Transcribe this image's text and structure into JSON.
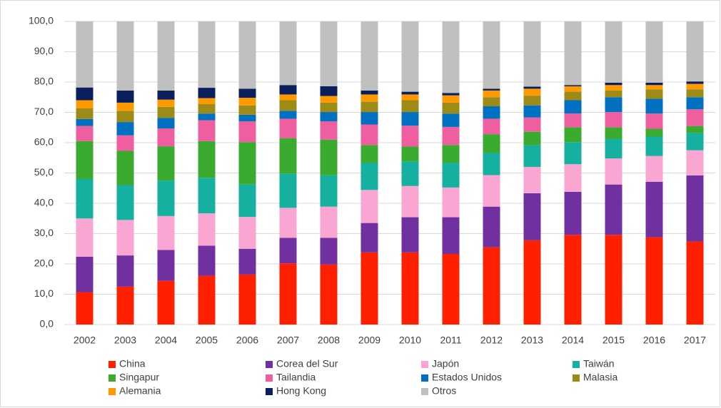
{
  "chart_data": {
    "type": "stacked_bar",
    "categories": [
      "2002",
      "2003",
      "2004",
      "2005",
      "2006",
      "2007",
      "2008",
      "2009",
      "2010",
      "2011",
      "2012",
      "2013",
      "2014",
      "2015",
      "2016",
      "2017"
    ],
    "series": [
      {
        "name": "China",
        "color": "#ff2000",
        "values": [
          10.7,
          12.5,
          14.4,
          16.1,
          16.5,
          20.2,
          19.8,
          23.8,
          23.8,
          23.3,
          25.5,
          27.8,
          29.6,
          29.6,
          28.8,
          27.4
        ]
      },
      {
        "name": "Corea del Sur",
        "color": "#7030a0",
        "values": [
          11.7,
          10.3,
          10.2,
          9.9,
          8.5,
          8.4,
          8.8,
          9.7,
          11.6,
          12.1,
          13.4,
          15.5,
          14.2,
          16.6,
          18.3,
          21.8
        ]
      },
      {
        "name": "Japón",
        "color": "#f9a6d2",
        "values": [
          12.6,
          11.7,
          11.2,
          10.7,
          10.5,
          9.9,
          10.3,
          10.9,
          10.3,
          9.8,
          10.4,
          8.7,
          9.1,
          8.6,
          8.5,
          8.3
        ]
      },
      {
        "name": "Taiwán",
        "color": "#16b0a0",
        "values": [
          13.0,
          11.5,
          11.7,
          11.7,
          10.7,
          11.3,
          10.3,
          8.9,
          8.1,
          8.2,
          7.3,
          7.2,
          7.3,
          6.5,
          6.4,
          5.7
        ]
      },
      {
        "name": "Singapur",
        "color": "#3aab2e",
        "values": [
          12.5,
          11.3,
          11.3,
          12.1,
          14.0,
          11.7,
          11.8,
          5.9,
          4.9,
          5.8,
          6.2,
          4.4,
          4.9,
          3.8,
          2.6,
          2.3
        ]
      },
      {
        "name": "Tailandia",
        "color": "#ef5fa0",
        "values": [
          5.0,
          5.1,
          5.9,
          6.9,
          6.8,
          6.4,
          6.0,
          6.8,
          6.9,
          6.0,
          5.1,
          4.7,
          4.5,
          5.0,
          5.0,
          5.5
        ]
      },
      {
        "name": "Estados Unidos",
        "color": "#0070c0",
        "values": [
          2.3,
          4.4,
          3.5,
          2.2,
          2.2,
          2.6,
          3.1,
          4.1,
          4.5,
          4.4,
          4.1,
          4.0,
          4.4,
          4.9,
          4.9,
          4.0
        ]
      },
      {
        "name": "Malasia",
        "color": "#9c8b16",
        "values": [
          3.5,
          3.7,
          3.6,
          3.1,
          3.1,
          3.5,
          3.1,
          3.4,
          3.9,
          3.6,
          3.0,
          3.2,
          2.8,
          2.2,
          3.1,
          2.6
        ]
      },
      {
        "name": "Alemania",
        "color": "#ff9900",
        "values": [
          2.7,
          2.7,
          2.4,
          2.0,
          2.5,
          1.9,
          2.2,
          2.4,
          1.9,
          2.4,
          2.2,
          2.3,
          1.8,
          1.8,
          1.4,
          1.8
        ]
      },
      {
        "name": "Hong Kong",
        "color": "#0a1f5c",
        "values": [
          4.2,
          4.0,
          3.0,
          3.4,
          3.0,
          3.1,
          3.2,
          1.3,
          0.9,
          0.8,
          0.6,
          0.7,
          0.4,
          0.8,
          0.8,
          0.8
        ]
      },
      {
        "name": "Otros",
        "color": "#c0c0c0",
        "values": [
          21.8,
          22.8,
          22.8,
          21.9,
          22.2,
          21.0,
          21.4,
          22.8,
          23.2,
          23.6,
          22.2,
          21.5,
          21.0,
          20.2,
          20.2,
          19.8
        ]
      }
    ],
    "ylim": [
      0,
      100
    ],
    "yticks": [
      {
        "value": 0,
        "label": "0,0"
      },
      {
        "value": 10,
        "label": "10,0"
      },
      {
        "value": 20,
        "label": "20,0"
      },
      {
        "value": 30,
        "label": "30,0"
      },
      {
        "value": 40,
        "label": "40,0"
      },
      {
        "value": 50,
        "label": "50,0"
      },
      {
        "value": 60,
        "label": "60,0"
      },
      {
        "value": 70,
        "label": "70,0"
      },
      {
        "value": 80,
        "label": "80,0"
      },
      {
        "value": 90,
        "label": "90,0"
      },
      {
        "value": 100,
        "label": "100,0"
      }
    ],
    "grid": true,
    "legend": "bottom"
  }
}
